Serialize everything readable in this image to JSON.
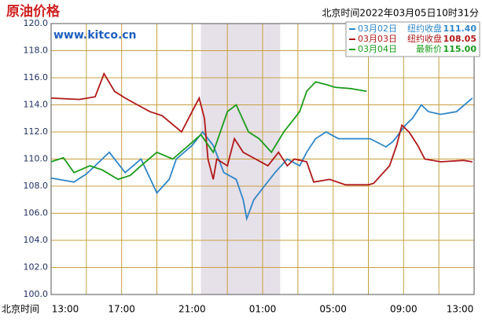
{
  "chart_data": {
    "type": "line",
    "title": "原油价格",
    "subtitle": "www.kitco.cn",
    "timestamp": "北京时间2022年03月05日10时31分",
    "xlabel": "北京时间",
    "xlim": [
      0,
      24
    ],
    "xticks": [
      {
        "value": 0,
        "label": "13:00"
      },
      {
        "value": 4,
        "label": "17:00"
      },
      {
        "value": 8,
        "label": "21:00"
      },
      {
        "value": 12,
        "label": "01:00"
      },
      {
        "value": 16,
        "label": "05:00"
      },
      {
        "value": 20,
        "label": "09:00"
      },
      {
        "value": 24,
        "label": "13:00"
      }
    ],
    "ylim": [
      100,
      120
    ],
    "yticks": [
      {
        "value": 100,
        "label": "100.0"
      },
      {
        "value": 102,
        "label": "102.0"
      },
      {
        "value": 104,
        "label": "104.0"
      },
      {
        "value": 106,
        "label": "106.0"
      },
      {
        "value": 108,
        "label": "108.0"
      },
      {
        "value": 110,
        "label": "110.0"
      },
      {
        "value": 112,
        "label": "112.0"
      },
      {
        "value": 114,
        "label": "114.0"
      },
      {
        "value": 116,
        "label": "116.0"
      },
      {
        "value": 118,
        "label": "118.0"
      },
      {
        "value": 120,
        "label": "120.0"
      }
    ],
    "grid": true,
    "grid_color": "#c8a040",
    "shaded_x": [
      8.5,
      13
    ],
    "legend": "top-right",
    "series": [
      {
        "name": "03月02日",
        "status": "纽约收盘",
        "price": {
          "value": 111.4,
          "label": "111.40"
        },
        "color": "#2f86c8",
        "x": [
          0,
          1.3,
          2.0,
          2.5,
          3.3,
          4.2,
          5.1,
          6.0,
          6.7,
          7.1,
          8.0,
          8.6,
          9.2,
          9.8,
          10.5,
          10.9,
          11.1,
          11.5,
          12.1,
          12.7,
          13.4,
          14.1,
          14.5,
          15.0,
          15.6,
          16.3,
          18.1,
          19.0,
          19.4,
          20.1,
          20.5,
          21.0,
          21.4,
          22.1,
          23.0,
          23.9
        ],
        "values": [
          108.6,
          108.3,
          108.9,
          109.5,
          110.5,
          109,
          110,
          107.5,
          108.5,
          110,
          111,
          112,
          111,
          109,
          108.5,
          107,
          105.6,
          107,
          108,
          109,
          110,
          109.5,
          110.5,
          111.5,
          112,
          111.5,
          111.5,
          110.9,
          111.3,
          112.5,
          113,
          114,
          113.5,
          113.3,
          113.5,
          114.5
        ]
      },
      {
        "name": "03月03日",
        "status": "纽约收盘",
        "price": {
          "value": 108.05,
          "label": "108.05"
        },
        "color": "#b01818",
        "x": [
          0,
          1.6,
          2.5,
          3.0,
          3.6,
          4.2,
          4.9,
          5.6,
          6.3,
          7.4,
          8.0,
          8.4,
          8.7,
          8.9,
          9.2,
          9.4,
          10.0,
          10.4,
          10.9,
          11.6,
          12.3,
          12.9,
          13.4,
          13.8,
          14.5,
          14.9,
          15.8,
          16.7,
          18.0,
          18.3,
          19.2,
          19.6,
          19.9,
          20.3,
          20.8,
          21.2,
          22.1,
          23.4,
          23.9
        ],
        "values": [
          114.5,
          114.4,
          114.6,
          116.3,
          115,
          114.5,
          114,
          113.5,
          113.2,
          112,
          113.5,
          114.5,
          113,
          110,
          108.5,
          110,
          109.5,
          111.5,
          110.5,
          110,
          109.5,
          110.5,
          109.5,
          110,
          109.8,
          108.3,
          108.5,
          108.1,
          108.1,
          108.2,
          109.5,
          111,
          112.5,
          112,
          111,
          110,
          109.8,
          109.9,
          109.8
        ]
      },
      {
        "name": "03月04日",
        "status": "最新价",
        "price": {
          "value": 115,
          "label": "115.00"
        },
        "color": "#1a9c1a",
        "x": [
          0,
          0.7,
          1.3,
          2.2,
          2.9,
          3.8,
          4.5,
          5.1,
          6.0,
          6.9,
          7.8,
          8.5,
          9.2,
          9.6,
          10.0,
          10.5,
          11.2,
          11.8,
          12.5,
          13.2,
          13.8,
          14.1,
          14.5,
          15.0,
          15.6,
          16.1,
          17.0,
          17.9
        ],
        "values": [
          109.8,
          110.1,
          109,
          109.5,
          109.2,
          108.5,
          108.8,
          109.5,
          110.5,
          110,
          111,
          111.8,
          110.5,
          112,
          113.5,
          114,
          112,
          111.5,
          110.5,
          112,
          113,
          113.5,
          115,
          115.7,
          115.5,
          115.3,
          115.2,
          115
        ]
      }
    ]
  }
}
